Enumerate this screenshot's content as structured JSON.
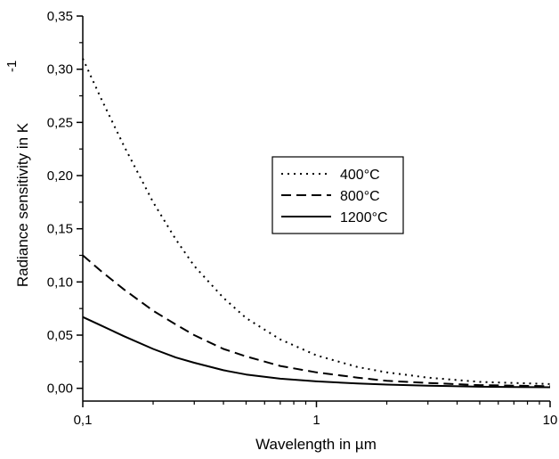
{
  "chart_data": {
    "type": "line",
    "x_scale": "log",
    "xlabel": "Wavelength in µm",
    "ylabel": "Radiance sensitivity in K",
    "ylabel_superscript": "-1",
    "xlim": [
      0.1,
      10
    ],
    "ylim": [
      -0.012,
      0.35
    ],
    "x_ticks": [
      {
        "value": 0.1,
        "label": "0,1"
      },
      {
        "value": 1,
        "label": "1"
      },
      {
        "value": 10,
        "label": "10"
      }
    ],
    "y_ticks": [
      {
        "value": 0.0,
        "label": "0,00"
      },
      {
        "value": 0.05,
        "label": "0,05"
      },
      {
        "value": 0.1,
        "label": "0,10"
      },
      {
        "value": 0.15,
        "label": "0,15"
      },
      {
        "value": 0.2,
        "label": "0,20"
      },
      {
        "value": 0.25,
        "label": "0,25"
      },
      {
        "value": 0.3,
        "label": "0,30"
      },
      {
        "value": 0.35,
        "label": "0,35"
      }
    ],
    "grid": false,
    "legend_position": "center-right",
    "series": [
      {
        "name": "400°C",
        "style": "dotted",
        "x": [
          0.1,
          0.12,
          0.15,
          0.2,
          0.25,
          0.3,
          0.4,
          0.5,
          0.7,
          1,
          1.5,
          2,
          3,
          5,
          7,
          10
        ],
        "y": [
          0.31,
          0.272,
          0.228,
          0.175,
          0.14,
          0.115,
          0.085,
          0.066,
          0.046,
          0.031,
          0.02,
          0.015,
          0.01,
          0.006,
          0.005,
          0.004
        ]
      },
      {
        "name": "800°C",
        "style": "dashed",
        "x": [
          0.1,
          0.12,
          0.15,
          0.2,
          0.25,
          0.3,
          0.4,
          0.5,
          0.7,
          1,
          1.5,
          2,
          3,
          5,
          7,
          10
        ],
        "y": [
          0.125,
          0.11,
          0.093,
          0.073,
          0.06,
          0.05,
          0.037,
          0.03,
          0.021,
          0.015,
          0.01,
          0.007,
          0.005,
          0.003,
          0.0025,
          0.002
        ]
      },
      {
        "name": "1200°C",
        "style": "solid",
        "x": [
          0.1,
          0.12,
          0.15,
          0.2,
          0.25,
          0.3,
          0.4,
          0.5,
          0.7,
          1,
          1.5,
          2,
          3,
          5,
          7,
          10
        ],
        "y": [
          0.067,
          0.059,
          0.049,
          0.037,
          0.029,
          0.024,
          0.017,
          0.013,
          0.009,
          0.0065,
          0.0045,
          0.0035,
          0.0025,
          0.0015,
          0.0012,
          0.001
        ]
      }
    ]
  }
}
